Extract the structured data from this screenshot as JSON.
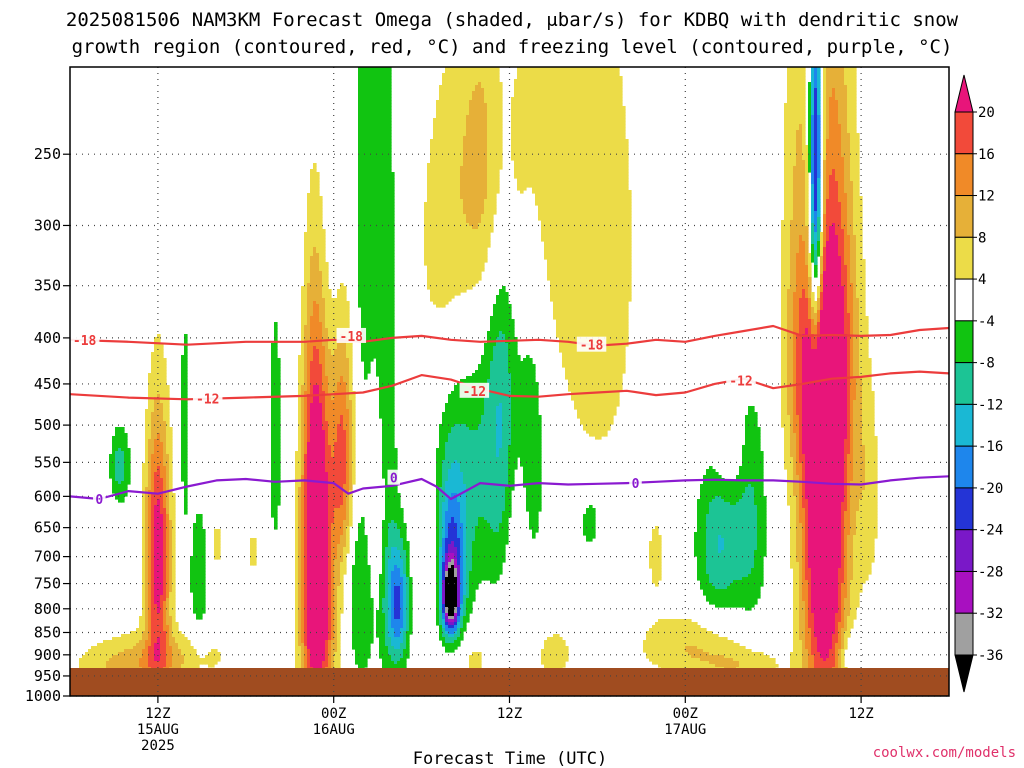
{
  "title_line1": "2025081506 NAM3KM Forecast Omega (shaded, μbar/s) for KDBQ with dendritic snow",
  "title_line2": "growth region (contoured, red, °C) and freezing level (contoured, purple, °C)",
  "x_axis_title": "Forecast Time (UTC)",
  "credit": "coolwx.com/models",
  "chart_data": {
    "type": "heatmap",
    "title": "2025081506 NAM3KM Forecast Omega (shaded, μbar/s) for KDBQ with dendritic snow growth region (contoured, red, °C) and freezing level (contoured, purple, °C)",
    "xlabel": "Forecast Time (UTC)",
    "ylabel": "",
    "x_range_hours": [
      0,
      60
    ],
    "y_range_hpa": [
      200,
      1000
    ],
    "y_scale": "log-pressure",
    "y_ticks": [
      250,
      300,
      350,
      400,
      450,
      500,
      550,
      600,
      650,
      700,
      750,
      800,
      850,
      900,
      950,
      1000
    ],
    "x_ticks": [
      {
        "hour": 6,
        "lines": [
          "12Z",
          "15AUG",
          "2025"
        ]
      },
      {
        "hour": 18,
        "lines": [
          "00Z",
          "16AUG"
        ]
      },
      {
        "hour": 30,
        "lines": [
          "12Z"
        ]
      },
      {
        "hour": 42,
        "lines": [
          "00Z",
          "17AUG"
        ]
      },
      {
        "hour": 54,
        "lines": [
          "12Z"
        ]
      }
    ],
    "grid": true,
    "colorbar": {
      "labels": [
        "20",
        "16",
        "12",
        "8",
        "4",
        "-4",
        "-8",
        "-12",
        "-16",
        "-20",
        "-24",
        "-28",
        "-32",
        "-36"
      ],
      "bins": [
        {
          "color": "#e8157a"
        },
        {
          "color": "#f24a3a"
        },
        {
          "color": "#f08a28"
        },
        {
          "color": "#e6b038"
        },
        {
          "color": "#ecdc48"
        },
        {
          "color": "#ffffff"
        },
        {
          "color": "#11c411"
        },
        {
          "color": "#1cc495"
        },
        {
          "color": "#1ab8d4"
        },
        {
          "color": "#1e86ec"
        },
        {
          "color": "#2434d6"
        },
        {
          "color": "#7a18c8"
        },
        {
          "color": "#a810c0"
        },
        {
          "color": "#a0a0a0"
        },
        {
          "color": "#000000"
        }
      ]
    },
    "series": [
      {
        "name": "-18",
        "color": "#ec3c3c",
        "x": [
          0,
          4,
          8,
          12,
          16,
          18,
          20,
          22,
          24,
          26,
          28,
          30,
          32,
          34,
          36,
          38,
          40,
          42,
          44,
          46,
          48,
          50,
          52,
          54,
          56,
          58,
          60
        ],
        "y": [
          402,
          404,
          407,
          404,
          404,
          402,
          404,
          400,
          398,
          402,
          404,
          403,
          402,
          404,
          408,
          406,
          402,
          404,
          398,
          393,
          388,
          398,
          397,
          398,
          397,
          392,
          390
        ]
      },
      {
        "name": "-12",
        "color": "#ec3c3c",
        "x": [
          0,
          4,
          8,
          12,
          16,
          18,
          20,
          22,
          24,
          26,
          28,
          30,
          32,
          34,
          36,
          38,
          40,
          42,
          44,
          46,
          48,
          50,
          52,
          54,
          56,
          58,
          60
        ],
        "y": [
          462,
          466,
          468,
          466,
          464,
          462,
          460,
          452,
          440,
          445,
          456,
          464,
          465,
          462,
          460,
          458,
          463,
          460,
          450,
          444,
          455,
          450,
          444,
          442,
          438,
          436,
          438
        ]
      },
      {
        "name": "0",
        "color": "#8a1ad0",
        "x": [
          0,
          2,
          4,
          6,
          8,
          10,
          12,
          14,
          16,
          18,
          19,
          20,
          22,
          24,
          25,
          26,
          27,
          28,
          30,
          32,
          34,
          36,
          38,
          40,
          42,
          44,
          46,
          48,
          50,
          52,
          54,
          56,
          58,
          60
        ],
        "y": [
          600,
          604,
          592,
          596,
          585,
          576,
          574,
          578,
          576,
          580,
          596,
          588,
          584,
          574,
          585,
          604,
          592,
          580,
          584,
          580,
          582,
          581,
          580,
          578,
          576,
          575,
          576,
          576,
          578,
          581,
          582,
          576,
          572,
          570
        ]
      }
    ],
    "contour_labels": [
      {
        "text": "-18",
        "x": 1.0,
        "y": 402
      },
      {
        "text": "-18",
        "x": 19.2,
        "y": 398
      },
      {
        "text": "-18",
        "x": 35.6,
        "y": 407
      },
      {
        "text": "-12",
        "x": 9.4,
        "y": 467
      },
      {
        "text": "-12",
        "x": 27.6,
        "y": 458
      },
      {
        "text": "-12",
        "x": 45.8,
        "y": 446
      },
      {
        "text": "0",
        "x": 2.0,
        "y": 604
      },
      {
        "text": "0",
        "x": 22.1,
        "y": 572
      },
      {
        "text": "0",
        "x": 38.6,
        "y": 580
      }
    ],
    "omega_features": [
      {
        "x": 6.0,
        "p": 700,
        "sx": 0.6,
        "sp": 160,
        "v": 24
      },
      {
        "x": 6.0,
        "p": 900,
        "sx": 3.5,
        "sp": 45,
        "v": 8
      },
      {
        "x": 4.0,
        "p": 935,
        "sx": 2.6,
        "sp": 30,
        "v": 5
      },
      {
        "x": 3.4,
        "p": 555,
        "sx": 0.5,
        "sp": 40,
        "v": -10
      },
      {
        "x": 7.8,
        "p": 500,
        "sx": 0.2,
        "sp": 130,
        "v": -6
      },
      {
        "x": 8.8,
        "p": 740,
        "sx": 0.5,
        "sp": 110,
        "v": -7
      },
      {
        "x": 10.0,
        "p": 680,
        "sx": 0.35,
        "sp": 60,
        "v": 5
      },
      {
        "x": 16.8,
        "p": 640,
        "sx": 0.7,
        "sp": 260,
        "v": 34
      },
      {
        "x": 18.6,
        "p": 560,
        "sx": 0.6,
        "sp": 130,
        "v": 20
      },
      {
        "x": 17.0,
        "p": 310,
        "sx": 0.9,
        "sp": 200,
        "v": -8
      },
      {
        "x": 18.0,
        "p": 850,
        "sx": 1.4,
        "sp": 110,
        "v": 8
      },
      {
        "x": 19.5,
        "p": 780,
        "sx": 1.0,
        "sp": 150,
        "v": -12
      },
      {
        "x": 20.2,
        "p": 300,
        "sx": 0.6,
        "sp": 150,
        "v": -7
      },
      {
        "x": 21.6,
        "p": 500,
        "sx": 0.5,
        "sp": 270,
        "v": -9
      },
      {
        "x": 22.4,
        "p": 790,
        "sx": 0.55,
        "sp": 90,
        "v": -20
      },
      {
        "x": 21.0,
        "p": 620,
        "sx": 0.6,
        "sp": 120,
        "v": 7
      },
      {
        "x": 24.5,
        "p": 700,
        "sx": 0.8,
        "sp": 120,
        "v": 6
      },
      {
        "x": 26.0,
        "p": 740,
        "sx": 0.7,
        "sp": 110,
        "v": -22
      },
      {
        "x": 26.0,
        "p": 775,
        "sx": 0.32,
        "sp": 40,
        "v": -34
      },
      {
        "x": 27.0,
        "p": 560,
        "sx": 1.8,
        "sp": 140,
        "v": -9
      },
      {
        "x": 25.5,
        "p": 330,
        "sx": 1.5,
        "sp": 100,
        "v": 6
      },
      {
        "x": 28.5,
        "p": 260,
        "sx": 1.5,
        "sp": 80,
        "v": 8
      },
      {
        "x": 29.5,
        "p": 440,
        "sx": 0.8,
        "sp": 190,
        "v": -10
      },
      {
        "x": 30.5,
        "p": 640,
        "sx": 0.6,
        "sp": 180,
        "v": 7
      },
      {
        "x": 31.3,
        "p": 520,
        "sx": 0.9,
        "sp": 170,
        "v": -8
      },
      {
        "x": 27.0,
        "p": 910,
        "sx": 1.5,
        "sp": 50,
        "v": 6
      },
      {
        "x": 33.0,
        "p": 900,
        "sx": 1.0,
        "sp": 50,
        "v": 6
      },
      {
        "x": 32.0,
        "p": 260,
        "sx": 3.5,
        "sp": 100,
        "v": 5
      },
      {
        "x": 35.5,
        "p": 640,
        "sx": 0.6,
        "sp": 40,
        "v": -8
      },
      {
        "x": 36.0,
        "p": 380,
        "sx": 2.5,
        "sp": 200,
        "v": 5
      },
      {
        "x": 42.5,
        "p": 880,
        "sx": 2.8,
        "sp": 55,
        "v": 8
      },
      {
        "x": 46.0,
        "p": 930,
        "sx": 2.0,
        "sp": 35,
        "v": 6
      },
      {
        "x": 44.3,
        "p": 680,
        "sx": 1.1,
        "sp": 100,
        "v": -12
      },
      {
        "x": 46.5,
        "p": 640,
        "sx": 0.8,
        "sp": 140,
        "v": -8
      },
      {
        "x": 45.0,
        "p": 540,
        "sx": 0.7,
        "sp": 40,
        "v": 5
      },
      {
        "x": 51.5,
        "p": 620,
        "sx": 1.1,
        "sp": 300,
        "v": 32
      },
      {
        "x": 51.0,
        "p": 440,
        "sx": 1.3,
        "sp": 90,
        "v": 12
      },
      {
        "x": 50.9,
        "p": 270,
        "sx": 0.3,
        "sp": 90,
        "v": -30
      },
      {
        "x": 50.9,
        "p": 280,
        "sx": 0.6,
        "sp": 130,
        "v": -13
      },
      {
        "x": 50.0,
        "p": 290,
        "sx": 1.1,
        "sp": 180,
        "v": 6
      },
      {
        "x": 53.0,
        "p": 400,
        "sx": 0.9,
        "sp": 140,
        "v": 6
      },
      {
        "x": 53.3,
        "p": 900,
        "sx": 0.5,
        "sp": 40,
        "v": -7
      },
      {
        "x": 54.5,
        "p": 600,
        "sx": 0.6,
        "sp": 120,
        "v": 6
      },
      {
        "x": 40.0,
        "p": 700,
        "sx": 0.5,
        "sp": 60,
        "v": 5
      },
      {
        "x": 14.0,
        "p": 520,
        "sx": 0.5,
        "sp": 200,
        "v": -5
      },
      {
        "x": 12.5,
        "p": 690,
        "sx": 0.4,
        "sp": 40,
        "v": 5
      }
    ]
  }
}
